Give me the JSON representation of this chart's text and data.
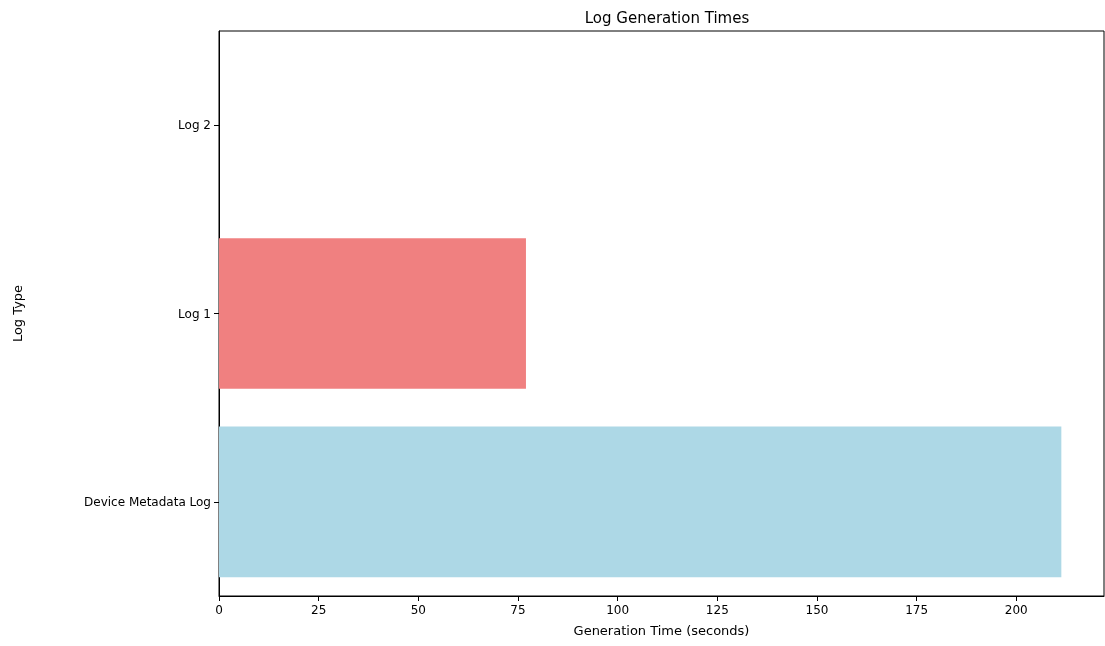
{
  "chart_data": {
    "type": "bar",
    "orientation": "horizontal",
    "title": "Log Generation Times",
    "xlabel": "Generation Time (seconds)",
    "ylabel": "Log Type",
    "categories": [
      "Log 2",
      "Log 1",
      "Device Metadata Log"
    ],
    "values": [
      0,
      77,
      211.3
    ],
    "colors": [
      "#90ee90",
      "#f08080",
      "#add8e6"
    ],
    "xlim": [
      0,
      222
    ],
    "xticks": [
      0,
      25,
      50,
      75,
      100,
      125,
      150,
      175,
      200
    ],
    "grid": false
  }
}
